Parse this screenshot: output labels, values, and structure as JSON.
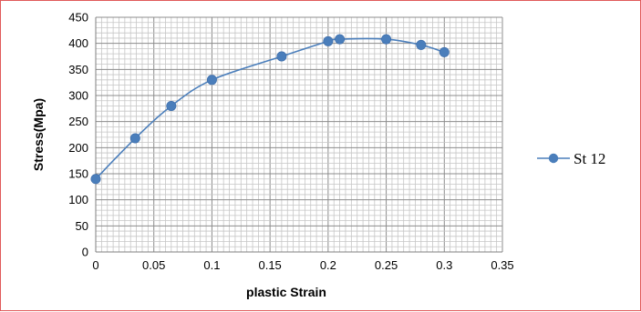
{
  "chart_data": {
    "type": "scatter",
    "title": "",
    "xlabel": "plastic Strain",
    "ylabel": "Stress(Mpa)",
    "xlim": [
      0,
      0.35
    ],
    "ylim": [
      0,
      450
    ],
    "x_ticks": [
      "0",
      "0.05",
      "0.1",
      "0.15",
      "0.2",
      "0.25",
      "0.3",
      "0.35"
    ],
    "y_ticks": [
      "0",
      "50",
      "100",
      "150",
      "200",
      "250",
      "300",
      "350",
      "400",
      "450"
    ],
    "grid": true,
    "legend_position": "right",
    "series": [
      {
        "name": "St 12",
        "color": "#4a7ebb",
        "marker": "circle",
        "line": "smooth",
        "x": [
          0,
          0.034,
          0.065,
          0.1,
          0.16,
          0.2,
          0.21,
          0.25,
          0.28,
          0.3
        ],
        "y": [
          140,
          218,
          280,
          330,
          375,
          404,
          408,
          408,
          397,
          383
        ]
      }
    ]
  }
}
